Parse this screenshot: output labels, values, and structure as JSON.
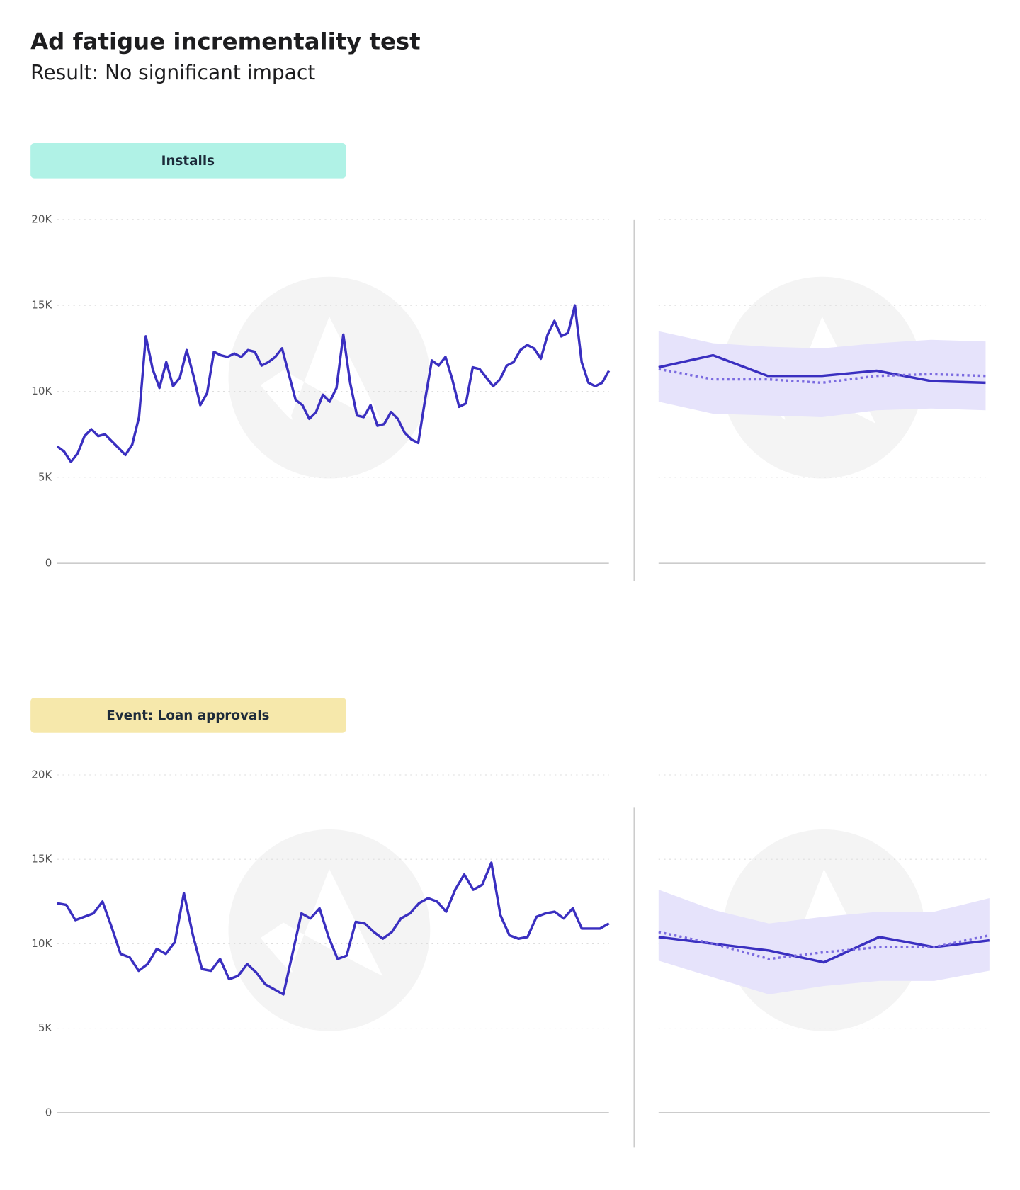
{
  "header": {
    "title": "Ad fatigue incrementality test",
    "subtitle": "Result: No significant impact"
  },
  "chart_data": [
    {
      "type": "line",
      "title": "Installs",
      "title_color": "#b0f2e6",
      "ylim": [
        0,
        20000
      ],
      "yticks": [
        {
          "value": 0,
          "label": "0"
        },
        {
          "value": 5000,
          "label": "5K"
        },
        {
          "value": 10000,
          "label": "10K"
        },
        {
          "value": 15000,
          "label": "15K"
        },
        {
          "value": 20000,
          "label": "20K"
        }
      ],
      "grid": true,
      "show_tick_labels": true,
      "series": [
        {
          "color": "#3a2fc0",
          "dashed": false,
          "values": [
            6800,
            6500,
            5900,
            6400,
            7400,
            7800,
            7400,
            7500,
            7100,
            6700,
            6300,
            6900,
            8500,
            13200,
            11300,
            10200,
            11700,
            10300,
            10800,
            12400,
            10900,
            9200,
            9900,
            12300,
            12100,
            12000,
            12200,
            12000,
            12400,
            12300,
            11500,
            11700,
            12000,
            12500,
            11000,
            9500,
            9200,
            8400,
            8800,
            9800,
            9400,
            10200,
            13300,
            10500,
            8600,
            8500,
            9200,
            8000,
            8100,
            8800,
            8400,
            7600,
            7200,
            7000,
            9500,
            11800,
            11500,
            12000,
            10700,
            9100,
            9300,
            11400,
            11300,
            10800,
            10300,
            10700,
            11500,
            11700,
            12400,
            12700,
            12500,
            11900,
            13300,
            14100,
            13200,
            13400,
            15000,
            11700,
            10500,
            10300,
            10500,
            11200
          ]
        }
      ]
    },
    {
      "type": "line",
      "ylim": [
        0,
        20000
      ],
      "yticks": [
        0,
        5000,
        10000,
        15000,
        20000
      ],
      "grid": true,
      "show_tick_labels": false,
      "band": {
        "color": "#e6e3fb",
        "upper": [
          13500,
          12800,
          12600,
          12500,
          12800,
          13000,
          12900
        ],
        "lower": [
          9400,
          8700,
          8600,
          8500,
          8900,
          9000,
          8900
        ]
      },
      "series": [
        {
          "color": "#3a2fc0",
          "dashed": false,
          "values": [
            11400,
            12100,
            10900,
            10900,
            11200,
            10600,
            10500
          ]
        },
        {
          "color": "#7b6be0",
          "dashed": true,
          "values": [
            11300,
            10700,
            10700,
            10500,
            10900,
            11000,
            10900
          ]
        }
      ]
    },
    {
      "type": "line",
      "title": "Event: Loan approvals",
      "title_color": "#f6e8ab",
      "ylim": [
        0,
        20000
      ],
      "yticks": [
        {
          "value": 0,
          "label": "0"
        },
        {
          "value": 5000,
          "label": "5K"
        },
        {
          "value": 10000,
          "label": "10K"
        },
        {
          "value": 15000,
          "label": "15K"
        },
        {
          "value": 20000,
          "label": "20K"
        }
      ],
      "grid": true,
      "show_tick_labels": true,
      "series": [
        {
          "color": "#3a2fc0",
          "dashed": false,
          "values": [
            12400,
            12300,
            11400,
            11600,
            11800,
            12500,
            11000,
            9400,
            9200,
            8400,
            8800,
            9700,
            9400,
            10100,
            13000,
            10500,
            8500,
            8400,
            9100,
            7900,
            8100,
            8800,
            8300,
            7600,
            7300,
            7000,
            9400,
            11800,
            11500,
            12100,
            10400,
            9100,
            9300,
            11300,
            11200,
            10700,
            10300,
            10700,
            11500,
            11800,
            12400,
            12700,
            12500,
            11900,
            13200,
            14100,
            13200,
            13500,
            14800,
            11700,
            10500,
            10300,
            10400,
            11600,
            11800,
            11900,
            11500,
            12100,
            10900,
            10900,
            10900,
            11200
          ]
        }
      ]
    },
    {
      "type": "line",
      "ylim": [
        0,
        20000
      ],
      "yticks": [
        0,
        5000,
        10000,
        15000,
        20000
      ],
      "grid": true,
      "show_tick_labels": false,
      "band": {
        "color": "#e6e3fb",
        "upper": [
          13200,
          12000,
          11200,
          11600,
          11900,
          11900,
          12700
        ],
        "lower": [
          9000,
          8000,
          7000,
          7500,
          7800,
          7800,
          8400
        ]
      },
      "series": [
        {
          "color": "#3a2fc0",
          "dashed": false,
          "values": [
            10400,
            10000,
            9600,
            8900,
            10400,
            9800,
            10200
          ]
        },
        {
          "color": "#7b6be0",
          "dashed": true,
          "values": [
            10700,
            10000,
            9100,
            9500,
            9800,
            9800,
            10500
          ]
        }
      ]
    }
  ]
}
